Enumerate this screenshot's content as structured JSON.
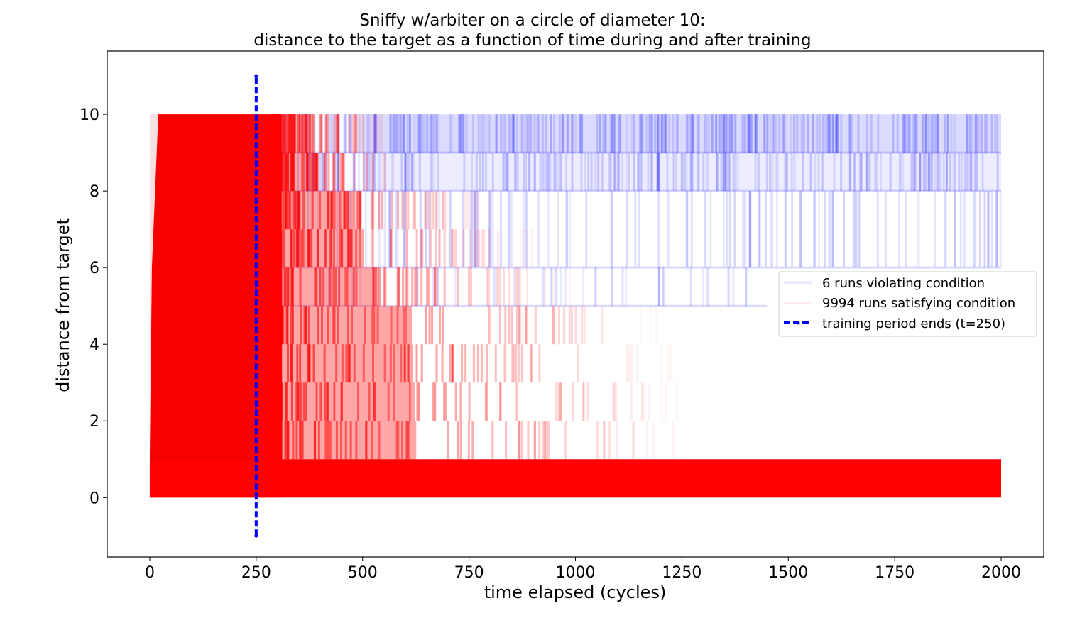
{
  "chart_data": {
    "type": "line",
    "title": "Sniffy w/arbiter on a circle of diameter 10:",
    "subtitle": "distance to the target as a function of time during and after training",
    "xlabel": "time elapsed (cycles)",
    "ylabel": "distance from target",
    "xlim": [
      -100,
      2100
    ],
    "ylim": [
      -1.55,
      11.65
    ],
    "xticks": [
      0,
      250,
      500,
      750,
      1000,
      1250,
      1500,
      1750,
      2000
    ],
    "yticks": [
      0,
      2,
      4,
      6,
      8,
      10
    ],
    "grid": false,
    "legend": {
      "position": "center-right",
      "entries": [
        "6 runs violating condition",
        "9994 runs satisfying condition",
        "training period ends (t=250)"
      ]
    },
    "series": [
      {
        "name": "6 runs violating condition",
        "color": "#0000ff",
        "opacity": 0.06,
        "description_values": {
          "x_range": [
            0,
            2000
          ],
          "bands": [
            {
              "y": [
                9,
                10
              ],
              "x_end": 2000,
              "density": 0.75
            },
            {
              "y": [
                8,
                9
              ],
              "x_end": 2000,
              "density": 0.55
            },
            {
              "y": [
                6,
                8
              ],
              "x_end": 2000,
              "density": 0.25
            },
            {
              "y": [
                5,
                6
              ],
              "x_end": 1450,
              "density": 0.12
            }
          ]
        }
      },
      {
        "name": "9994 runs satisfying condition",
        "color": "#ff0000",
        "opacity": 0.05,
        "description_values": {
          "x_range": [
            0,
            2000
          ],
          "solid_until": 250,
          "fade_bands": [
            {
              "y": [
                9,
                10
              ],
              "x_end": 560
            },
            {
              "y": [
                8,
                9
              ],
              "x_end": 580
            },
            {
              "y": [
                7,
                8
              ],
              "x_end": 820
            },
            {
              "y": [
                6,
                7
              ],
              "x_end": 900
            },
            {
              "y": [
                5,
                6
              ],
              "x_end": 1000
            },
            {
              "y": [
                4,
                5
              ],
              "x_end": 1220
            },
            {
              "y": [
                3,
                4
              ],
              "x_end": 1230
            },
            {
              "y": [
                2,
                3
              ],
              "x_end": 1240
            },
            {
              "y": [
                1,
                2
              ],
              "x_end": 1250
            }
          ],
          "steady_band": {
            "y": [
              0,
              1
            ],
            "x_end": 2000
          }
        }
      },
      {
        "name": "training period ends (t=250)",
        "color": "#0000ff",
        "style": "dashed",
        "x": [
          250,
          250
        ],
        "y": [
          -1,
          11
        ]
      }
    ]
  }
}
